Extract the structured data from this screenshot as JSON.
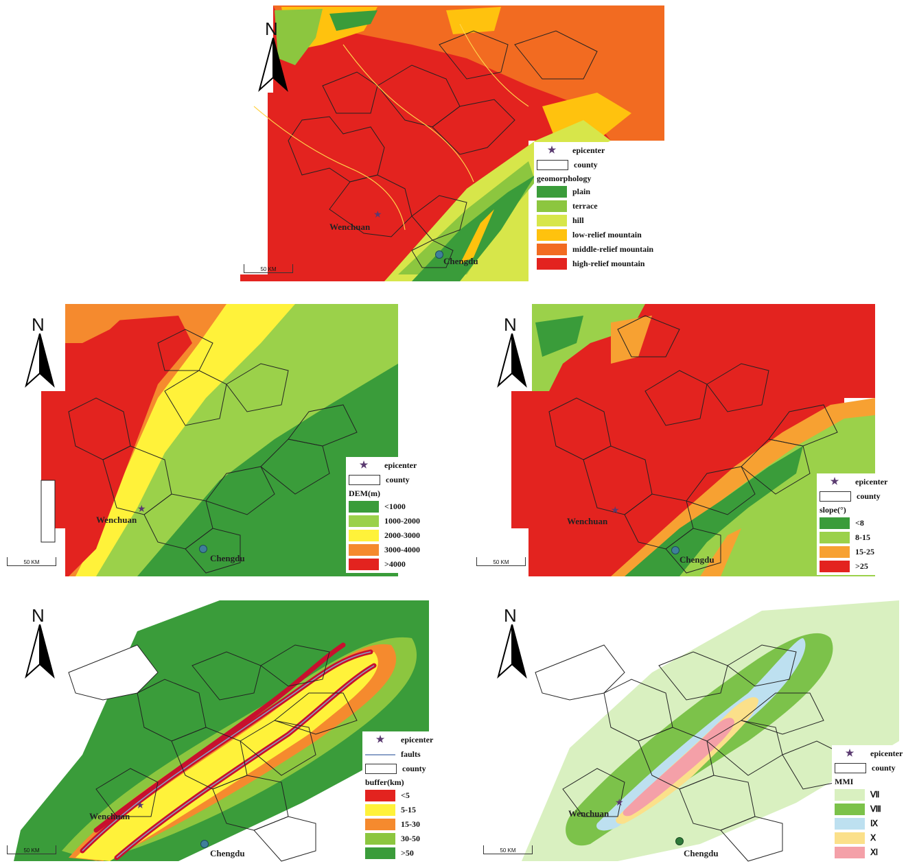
{
  "north_label": "N",
  "scale_label": "50 KM",
  "places": {
    "epicenter_town": "Wenchuan",
    "city": "Chengdu"
  },
  "panels": {
    "geomorphology": {
      "legend": {
        "epicenter": "epicenter",
        "county": "county",
        "title": "geomorphology",
        "classes": [
          {
            "label": "plain",
            "color": "#3a9c3a"
          },
          {
            "label": "terrace",
            "color": "#8cc63f"
          },
          {
            "label": "hill",
            "color": "#d7e64a"
          },
          {
            "label": "low-relief mountain",
            "color": "#ffc20e"
          },
          {
            "label": "middle-relief mountain",
            "color": "#f26b21"
          },
          {
            "label": "high-relief mountain",
            "color": "#e3231f"
          }
        ]
      }
    },
    "dem": {
      "legend": {
        "epicenter": "epicenter",
        "county": "county",
        "title": "DEM(m)",
        "classes": [
          {
            "label": "<1000",
            "color": "#3a9c3a"
          },
          {
            "label": "1000-2000",
            "color": "#9bd14a"
          },
          {
            "label": "2000-3000",
            "color": "#fff23a"
          },
          {
            "label": "3000-4000",
            "color": "#f58a2e"
          },
          {
            "label": ">4000",
            "color": "#e3231f"
          }
        ]
      }
    },
    "slope": {
      "legend": {
        "epicenter": "epicenter",
        "county": "county",
        "title": "slope(°)",
        "classes": [
          {
            "label": "<8",
            "color": "#3a9c3a"
          },
          {
            "label": "8-15",
            "color": "#9bd14a"
          },
          {
            "label": "15-25",
            "color": "#f7a132"
          },
          {
            "label": ">25",
            "color": "#e3231f"
          }
        ]
      }
    },
    "buffer": {
      "legend": {
        "epicenter": "epicenter",
        "faults": "faults",
        "county": "county",
        "title": "buffer(km)",
        "classes": [
          {
            "label": "<5",
            "color": "#e3231f"
          },
          {
            "label": "5-15",
            "color": "#fff23a"
          },
          {
            "label": "15-30",
            "color": "#f58a2e"
          },
          {
            "label": "30-50",
            "color": "#8cc63f"
          },
          {
            "label": ">50",
            "color": "#3a9c3a"
          }
        ]
      }
    },
    "mmi": {
      "legend": {
        "epicenter": "epicenter",
        "county": "county",
        "title": "MMI",
        "classes": [
          {
            "label": "Ⅶ",
            "color": "#d9f0c0"
          },
          {
            "label": "Ⅷ",
            "color": "#7cc24a"
          },
          {
            "label": "Ⅸ",
            "color": "#bde0f0"
          },
          {
            "label": "Ⅹ",
            "color": "#fbe08a"
          },
          {
            "label": "Ⅺ",
            "color": "#f4a0a8"
          }
        ]
      }
    }
  }
}
